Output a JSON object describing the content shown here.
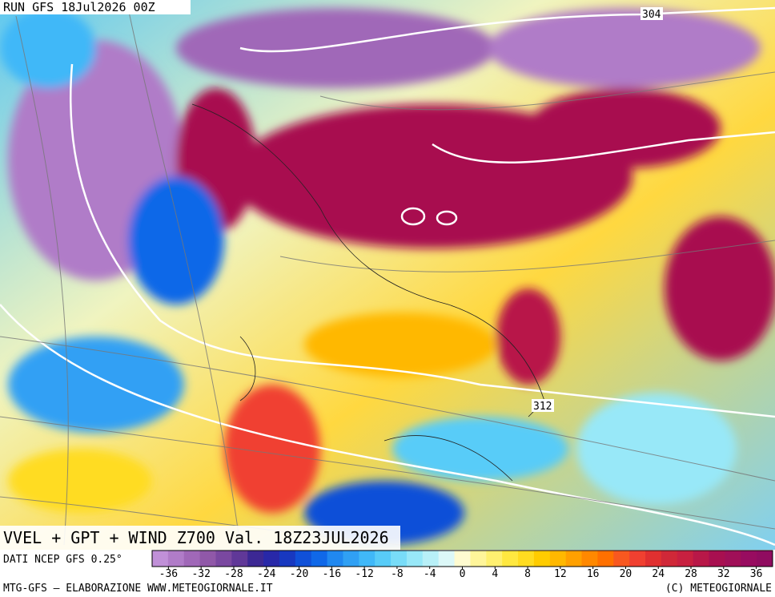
{
  "header": {
    "title": "RUN GFS 18Jul2026 00Z"
  },
  "contour_labels": [
    "304",
    "312"
  ],
  "map_title": "VVEL + GPT + WIND Z700 Val. 18Z23JUL2026",
  "source": "DATI NCEP GFS 0.25°",
  "legend": {
    "range": [
      -38,
      38
    ],
    "ticks": [
      -36,
      -32,
      -28,
      -24,
      -20,
      -16,
      -12,
      -8,
      -4,
      0,
      4,
      8,
      12,
      16,
      20,
      24,
      28,
      32,
      36
    ],
    "colors": [
      "#c090d8",
      "#b07cc8",
      "#a068b8",
      "#9058a8",
      "#7a48a0",
      "#603898",
      "#3c2894",
      "#2828a8",
      "#1838c0",
      "#1050d8",
      "#1068e8",
      "#2088f0",
      "#30a0f4",
      "#40b8f8",
      "#58ccf8",
      "#78dcf8",
      "#98e8f8",
      "#b8f0f8",
      "#dcf8f8",
      "#fffbd0",
      "#fff59a",
      "#fff070",
      "#ffe840",
      "#ffdc20",
      "#ffcc00",
      "#ffb800",
      "#ffa000",
      "#ff8800",
      "#ff7000",
      "#f85820",
      "#f04030",
      "#e03030",
      "#d02838",
      "#c82040",
      "#b81848",
      "#a81050",
      "#a01058",
      "#980c60",
      "#900c60"
    ]
  },
  "footer": {
    "left": "MTG-GFS — ELABORAZIONE WWW.METEOGIORNALE.IT",
    "right": "(C) METEOGIORNALE"
  }
}
